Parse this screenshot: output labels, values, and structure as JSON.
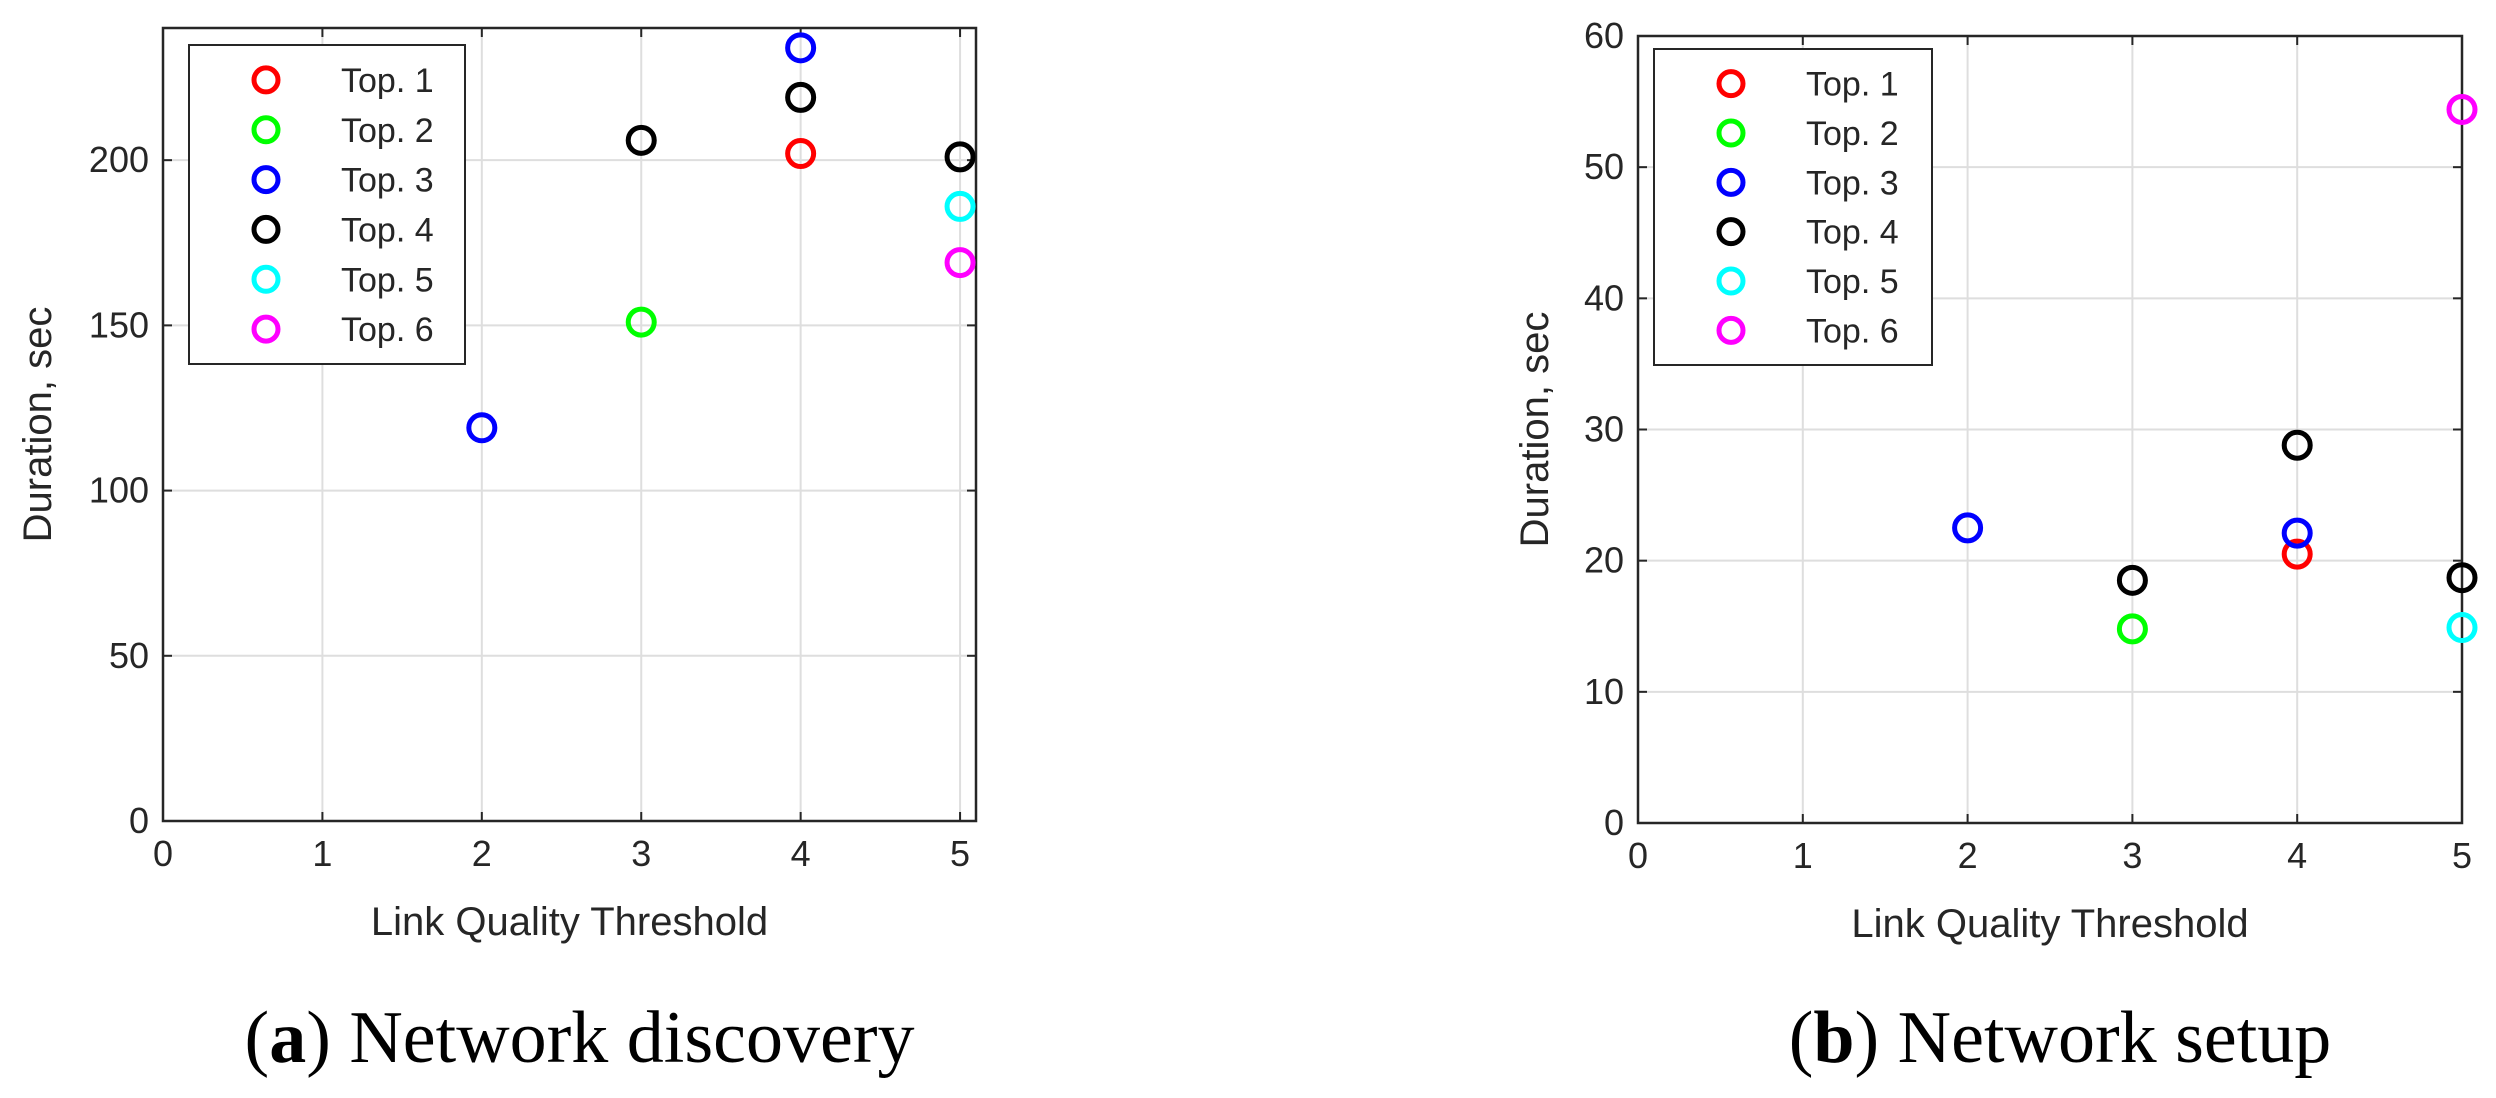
{
  "chart_data": [
    {
      "type": "scatter",
      "caption_letter": "a",
      "caption_text": "Network discovery",
      "xlabel": "Link Quality Threshold",
      "ylabel": "Duration, sec",
      "xlim": [
        0,
        5.1
      ],
      "ylim": [
        0,
        240
      ],
      "xticks": [
        "0",
        "1",
        "2",
        "3",
        "4",
        "5"
      ],
      "yticks": [
        "0",
        "50",
        "100",
        "150",
        "200"
      ],
      "grid": true,
      "legend_position": "top-left",
      "series": [
        {
          "name": "Top. 1",
          "color": "#ff0000",
          "points": [
            [
              4,
              202
            ]
          ]
        },
        {
          "name": "Top. 2",
          "color": "#00ff00",
          "points": [
            [
              3,
              151
            ]
          ]
        },
        {
          "name": "Top. 3",
          "color": "#0000ff",
          "points": [
            [
              2,
              119
            ],
            [
              4,
              234
            ]
          ]
        },
        {
          "name": "Top. 4",
          "color": "#000000",
          "points": [
            [
              3,
              206
            ],
            [
              4,
              219
            ],
            [
              5,
              201
            ]
          ]
        },
        {
          "name": "Top. 5",
          "color": "#00ffff",
          "points": [
            [
              5,
              186
            ]
          ]
        },
        {
          "name": "Top. 6",
          "color": "#ff00ff",
          "points": [
            [
              5,
              169
            ]
          ]
        }
      ]
    },
    {
      "type": "scatter",
      "caption_letter": "b",
      "caption_text": "Network setup",
      "xlabel": "Link Quality Threshold",
      "ylabel": "Duration, sec",
      "xlim": [
        0,
        5
      ],
      "ylim": [
        0,
        60
      ],
      "xticks": [
        "0",
        "1",
        "2",
        "3",
        "4",
        "5"
      ],
      "yticks": [
        "0",
        "10",
        "20",
        "30",
        "40",
        "50",
        "60"
      ],
      "grid": true,
      "legend_position": "top-left",
      "series": [
        {
          "name": "Top. 1",
          "color": "#ff0000",
          "points": [
            [
              4,
              20.5
            ]
          ]
        },
        {
          "name": "Top. 2",
          "color": "#00ff00",
          "points": [
            [
              3,
              14.8
            ]
          ]
        },
        {
          "name": "Top. 3",
          "color": "#0000ff",
          "points": [
            [
              2,
              22.5
            ],
            [
              4,
              22.1
            ]
          ]
        },
        {
          "name": "Top. 4",
          "color": "#000000",
          "points": [
            [
              3,
              18.5
            ],
            [
              4,
              28.8
            ],
            [
              5,
              18.7
            ]
          ]
        },
        {
          "name": "Top. 5",
          "color": "#00ffff",
          "points": [
            [
              5,
              14.9
            ]
          ]
        },
        {
          "name": "Top. 6",
          "color": "#ff00ff",
          "points": [
            [
              5,
              54.4
            ]
          ]
        }
      ]
    }
  ]
}
